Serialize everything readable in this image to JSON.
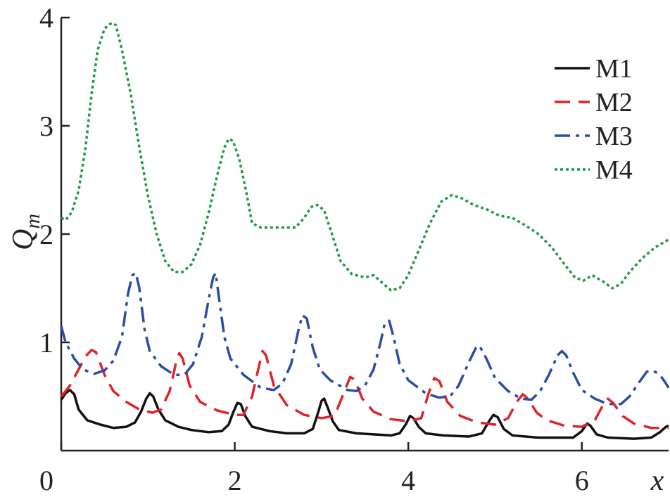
{
  "chart_data": {
    "type": "line",
    "xlabel": "x",
    "ylabel": "Q",
    "ylabel_sub": "m",
    "xlim": [
      0,
      7
    ],
    "ylim": [
      0,
      4
    ],
    "xticks": [
      {
        "v": 0,
        "label": "0"
      },
      {
        "v": 2,
        "label": "2"
      },
      {
        "v": 4,
        "label": "4"
      },
      {
        "v": 6,
        "label": "6"
      }
    ],
    "yticks": [
      {
        "v": 1,
        "label": "1"
      },
      {
        "v": 2,
        "label": "2"
      },
      {
        "v": 3,
        "label": "3"
      },
      {
        "v": 4,
        "label": "4"
      }
    ],
    "grid": false,
    "legend_position": "top-right",
    "series": [
      {
        "name": "M1",
        "color": "#111111",
        "dash": "none",
        "points": [
          [
            0,
            0.47
          ],
          [
            0.05,
            0.53
          ],
          [
            0.1,
            0.56
          ],
          [
            0.15,
            0.52
          ],
          [
            0.2,
            0.38
          ],
          [
            0.3,
            0.28
          ],
          [
            0.45,
            0.24
          ],
          [
            0.6,
            0.21
          ],
          [
            0.75,
            0.22
          ],
          [
            0.85,
            0.26
          ],
          [
            0.92,
            0.36
          ],
          [
            0.98,
            0.48
          ],
          [
            1.02,
            0.53
          ],
          [
            1.06,
            0.5
          ],
          [
            1.12,
            0.38
          ],
          [
            1.2,
            0.28
          ],
          [
            1.35,
            0.22
          ],
          [
            1.5,
            0.19
          ],
          [
            1.7,
            0.17
          ],
          [
            1.85,
            0.18
          ],
          [
            1.93,
            0.24
          ],
          [
            1.98,
            0.35
          ],
          [
            2.03,
            0.44
          ],
          [
            2.07,
            0.43
          ],
          [
            2.12,
            0.32
          ],
          [
            2.2,
            0.22
          ],
          [
            2.4,
            0.18
          ],
          [
            2.6,
            0.16
          ],
          [
            2.8,
            0.16
          ],
          [
            2.9,
            0.2
          ],
          [
            2.96,
            0.35
          ],
          [
            3.0,
            0.46
          ],
          [
            3.03,
            0.48
          ],
          [
            3.07,
            0.4
          ],
          [
            3.13,
            0.27
          ],
          [
            3.2,
            0.19
          ],
          [
            3.4,
            0.16
          ],
          [
            3.6,
            0.15
          ],
          [
            3.8,
            0.14
          ],
          [
            3.9,
            0.16
          ],
          [
            3.97,
            0.24
          ],
          [
            4.02,
            0.32
          ],
          [
            4.06,
            0.3
          ],
          [
            4.12,
            0.22
          ],
          [
            4.2,
            0.16
          ],
          [
            4.4,
            0.14
          ],
          [
            4.7,
            0.13
          ],
          [
            4.85,
            0.16
          ],
          [
            4.93,
            0.27
          ],
          [
            4.98,
            0.33
          ],
          [
            5.03,
            0.31
          ],
          [
            5.1,
            0.2
          ],
          [
            5.2,
            0.14
          ],
          [
            5.5,
            0.12
          ],
          [
            5.9,
            0.12
          ],
          [
            6.0,
            0.18
          ],
          [
            6.06,
            0.25
          ],
          [
            6.1,
            0.23
          ],
          [
            6.17,
            0.15
          ],
          [
            6.3,
            0.12
          ],
          [
            6.6,
            0.11
          ],
          [
            6.8,
            0.12
          ],
          [
            6.9,
            0.17
          ],
          [
            6.97,
            0.22
          ],
          [
            7.0,
            0.23
          ]
        ]
      },
      {
        "name": "M2",
        "color": "#e0222a",
        "dash": "22,12",
        "points": [
          [
            0,
            0.5
          ],
          [
            0.1,
            0.6
          ],
          [
            0.2,
            0.75
          ],
          [
            0.28,
            0.87
          ],
          [
            0.35,
            0.93
          ],
          [
            0.4,
            0.91
          ],
          [
            0.5,
            0.7
          ],
          [
            0.6,
            0.55
          ],
          [
            0.75,
            0.45
          ],
          [
            0.9,
            0.38
          ],
          [
            1.05,
            0.35
          ],
          [
            1.15,
            0.38
          ],
          [
            1.25,
            0.55
          ],
          [
            1.32,
            0.8
          ],
          [
            1.36,
            0.9
          ],
          [
            1.4,
            0.85
          ],
          [
            1.48,
            0.6
          ],
          [
            1.6,
            0.45
          ],
          [
            1.8,
            0.37
          ],
          [
            2.0,
            0.33
          ],
          [
            2.1,
            0.33
          ],
          [
            2.2,
            0.5
          ],
          [
            2.27,
            0.75
          ],
          [
            2.32,
            0.92
          ],
          [
            2.36,
            0.88
          ],
          [
            2.45,
            0.6
          ],
          [
            2.6,
            0.42
          ],
          [
            2.8,
            0.33
          ],
          [
            3.0,
            0.3
          ],
          [
            3.15,
            0.32
          ],
          [
            3.25,
            0.52
          ],
          [
            3.33,
            0.68
          ],
          [
            3.38,
            0.66
          ],
          [
            3.47,
            0.48
          ],
          [
            3.6,
            0.36
          ],
          [
            3.8,
            0.29
          ],
          [
            4.0,
            0.27
          ],
          [
            4.15,
            0.3
          ],
          [
            4.23,
            0.52
          ],
          [
            4.3,
            0.67
          ],
          [
            4.36,
            0.64
          ],
          [
            4.45,
            0.45
          ],
          [
            4.6,
            0.32
          ],
          [
            4.8,
            0.26
          ],
          [
            5.0,
            0.24
          ],
          [
            5.15,
            0.3
          ],
          [
            5.25,
            0.45
          ],
          [
            5.32,
            0.52
          ],
          [
            5.38,
            0.48
          ],
          [
            5.48,
            0.35
          ],
          [
            5.6,
            0.28
          ],
          [
            5.8,
            0.23
          ],
          [
            6.0,
            0.22
          ],
          [
            6.15,
            0.28
          ],
          [
            6.25,
            0.43
          ],
          [
            6.3,
            0.48
          ],
          [
            6.36,
            0.44
          ],
          [
            6.47,
            0.32
          ],
          [
            6.6,
            0.25
          ],
          [
            6.8,
            0.21
          ],
          [
            7.0,
            0.21
          ]
        ]
      },
      {
        "name": "M3",
        "color": "#2a4da6",
        "dash": "22,8,5,8",
        "points": [
          [
            0,
            1.15
          ],
          [
            0.05,
            1.0
          ],
          [
            0.15,
            0.85
          ],
          [
            0.25,
            0.75
          ],
          [
            0.38,
            0.71
          ],
          [
            0.5,
            0.74
          ],
          [
            0.6,
            0.83
          ],
          [
            0.7,
            1.05
          ],
          [
            0.77,
            1.45
          ],
          [
            0.82,
            1.62
          ],
          [
            0.86,
            1.64
          ],
          [
            0.9,
            1.5
          ],
          [
            0.96,
            1.12
          ],
          [
            1.02,
            0.92
          ],
          [
            1.15,
            0.78
          ],
          [
            1.3,
            0.7
          ],
          [
            1.42,
            0.7
          ],
          [
            1.52,
            0.8
          ],
          [
            1.62,
            1.05
          ],
          [
            1.7,
            1.4
          ],
          [
            1.75,
            1.6
          ],
          [
            1.78,
            1.64
          ],
          [
            1.82,
            1.4
          ],
          [
            1.88,
            1.05
          ],
          [
            1.95,
            0.85
          ],
          [
            2.1,
            0.7
          ],
          [
            2.3,
            0.58
          ],
          [
            2.45,
            0.56
          ],
          [
            2.55,
            0.62
          ],
          [
            2.65,
            0.8
          ],
          [
            2.73,
            1.1
          ],
          [
            2.78,
            1.25
          ],
          [
            2.83,
            1.22
          ],
          [
            2.9,
            0.95
          ],
          [
            2.98,
            0.75
          ],
          [
            3.1,
            0.65
          ],
          [
            3.3,
            0.56
          ],
          [
            3.4,
            0.55
          ],
          [
            3.5,
            0.6
          ],
          [
            3.6,
            0.75
          ],
          [
            3.68,
            1.0
          ],
          [
            3.73,
            1.18
          ],
          [
            3.78,
            1.2
          ],
          [
            3.83,
            1.05
          ],
          [
            3.9,
            0.8
          ],
          [
            4.0,
            0.65
          ],
          [
            4.2,
            0.53
          ],
          [
            4.35,
            0.49
          ],
          [
            4.48,
            0.5
          ],
          [
            4.58,
            0.6
          ],
          [
            4.7,
            0.82
          ],
          [
            4.78,
            0.95
          ],
          [
            4.82,
            0.97
          ],
          [
            4.9,
            0.85
          ],
          [
            5.0,
            0.67
          ],
          [
            5.15,
            0.55
          ],
          [
            5.3,
            0.48
          ],
          [
            5.42,
            0.47
          ],
          [
            5.52,
            0.55
          ],
          [
            5.62,
            0.7
          ],
          [
            5.72,
            0.88
          ],
          [
            5.77,
            0.92
          ],
          [
            5.82,
            0.88
          ],
          [
            5.9,
            0.72
          ],
          [
            6.0,
            0.56
          ],
          [
            6.15,
            0.48
          ],
          [
            6.3,
            0.43
          ],
          [
            6.45,
            0.43
          ],
          [
            6.55,
            0.5
          ],
          [
            6.65,
            0.62
          ],
          [
            6.75,
            0.73
          ],
          [
            6.82,
            0.74
          ],
          [
            6.9,
            0.7
          ],
          [
            6.97,
            0.62
          ],
          [
            7.0,
            0.58
          ]
        ]
      },
      {
        "name": "M4",
        "color": "#1f9a45",
        "dash": "4,4",
        "points": [
          [
            0,
            2.15
          ],
          [
            0.05,
            2.13
          ],
          [
            0.12,
            2.2
          ],
          [
            0.2,
            2.4
          ],
          [
            0.28,
            2.8
          ],
          [
            0.35,
            3.3
          ],
          [
            0.42,
            3.7
          ],
          [
            0.5,
            3.9
          ],
          [
            0.58,
            3.95
          ],
          [
            0.63,
            3.93
          ],
          [
            0.7,
            3.7
          ],
          [
            0.8,
            3.3
          ],
          [
            0.9,
            2.8
          ],
          [
            1.0,
            2.35
          ],
          [
            1.1,
            2.0
          ],
          [
            1.2,
            1.75
          ],
          [
            1.3,
            1.65
          ],
          [
            1.4,
            1.65
          ],
          [
            1.5,
            1.72
          ],
          [
            1.6,
            1.9
          ],
          [
            1.7,
            2.2
          ],
          [
            1.8,
            2.55
          ],
          [
            1.88,
            2.8
          ],
          [
            1.93,
            2.88
          ],
          [
            1.98,
            2.86
          ],
          [
            2.05,
            2.7
          ],
          [
            2.13,
            2.4
          ],
          [
            2.2,
            2.1
          ],
          [
            2.3,
            2.06
          ],
          [
            2.5,
            2.06
          ],
          [
            2.7,
            2.06
          ],
          [
            2.8,
            2.15
          ],
          [
            2.88,
            2.25
          ],
          [
            2.95,
            2.27
          ],
          [
            3.03,
            2.22
          ],
          [
            3.12,
            2.0
          ],
          [
            3.22,
            1.75
          ],
          [
            3.35,
            1.63
          ],
          [
            3.5,
            1.6
          ],
          [
            3.6,
            1.62
          ],
          [
            3.7,
            1.55
          ],
          [
            3.8,
            1.48
          ],
          [
            3.9,
            1.5
          ],
          [
            4.0,
            1.62
          ],
          [
            4.12,
            1.85
          ],
          [
            4.25,
            2.1
          ],
          [
            4.38,
            2.3
          ],
          [
            4.5,
            2.36
          ],
          [
            4.62,
            2.33
          ],
          [
            4.75,
            2.27
          ],
          [
            4.9,
            2.23
          ],
          [
            5.05,
            2.17
          ],
          [
            5.2,
            2.15
          ],
          [
            5.35,
            2.08
          ],
          [
            5.5,
            2.0
          ],
          [
            5.65,
            1.88
          ],
          [
            5.8,
            1.72
          ],
          [
            5.92,
            1.6
          ],
          [
            6.02,
            1.57
          ],
          [
            6.12,
            1.62
          ],
          [
            6.25,
            1.56
          ],
          [
            6.35,
            1.5
          ],
          [
            6.45,
            1.54
          ],
          [
            6.55,
            1.65
          ],
          [
            6.7,
            1.78
          ],
          [
            6.85,
            1.88
          ],
          [
            7.0,
            1.95
          ]
        ]
      }
    ]
  }
}
